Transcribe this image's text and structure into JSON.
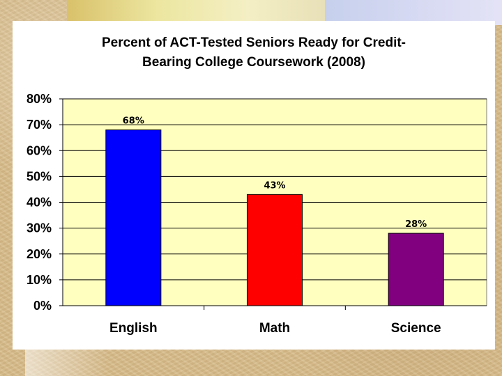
{
  "chart_data": {
    "type": "bar",
    "title_lines": [
      "Percent of ACT-Tested Seniors Ready for Credit-",
      "Bearing College Coursework (2008)"
    ],
    "categories": [
      "English",
      "Math",
      "Science"
    ],
    "values": [
      68,
      43,
      28
    ],
    "value_labels": [
      "68%",
      "43%",
      "28%"
    ],
    "bar_colors": [
      "#0000ff",
      "#ff0000",
      "#800080"
    ],
    "ylim": [
      0,
      80
    ],
    "y_ticks": [
      0,
      10,
      20,
      30,
      40,
      50,
      60,
      70,
      80
    ],
    "y_tick_labels": [
      "0%",
      "10%",
      "20%",
      "30%",
      "40%",
      "50%",
      "60%",
      "70%",
      "80%"
    ],
    "plot_background": "#ffffc0",
    "grid": true,
    "legend": "none"
  }
}
